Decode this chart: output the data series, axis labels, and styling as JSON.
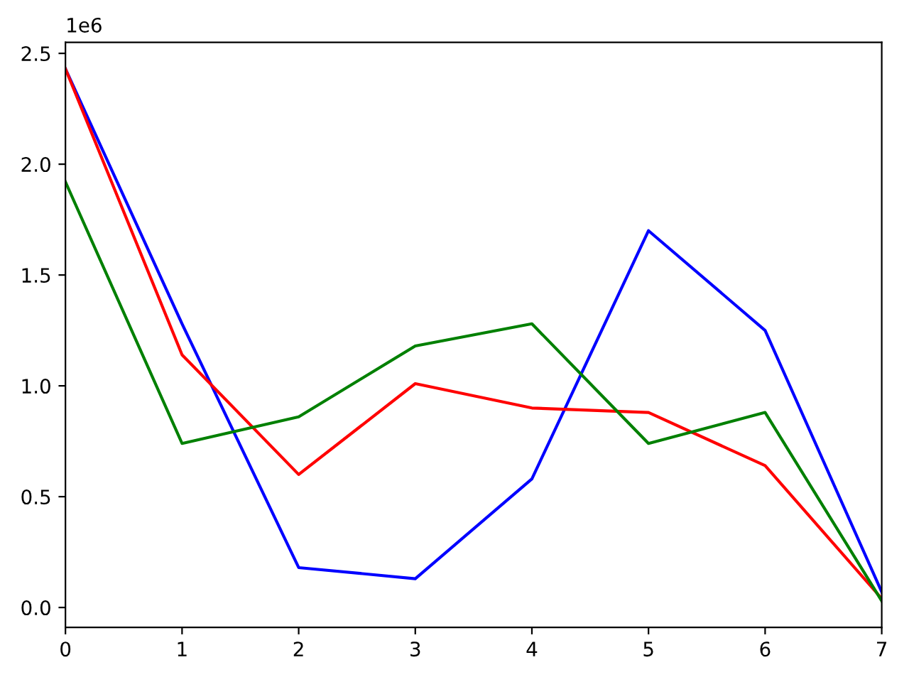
{
  "chart_data": {
    "type": "line",
    "x": [
      0,
      1,
      2,
      3,
      4,
      5,
      6,
      7
    ],
    "series": [
      {
        "color": "#0000ff",
        "values": [
          2.43,
          1.28,
          0.18,
          0.13,
          0.58,
          1.7,
          1.25,
          0.07
        ]
      },
      {
        "color": "#ff0000",
        "values": [
          2.43,
          1.14,
          0.6,
          1.01,
          0.9,
          0.88,
          0.64,
          0.04
        ]
      },
      {
        "color": "#008000",
        "values": [
          1.92,
          0.74,
          0.86,
          1.18,
          1.28,
          0.74,
          0.88,
          0.03
        ]
      }
    ],
    "xlim": [
      0,
      7
    ],
    "xticks": [
      0,
      1,
      2,
      3,
      4,
      5,
      6,
      7
    ],
    "ylim": [
      -0.09,
      2.55
    ],
    "yticks": [
      {
        "value": 0,
        "label": "0.0"
      },
      0.5,
      {
        "value": 1,
        "label": "1.0"
      },
      1.5,
      {
        "value": 2,
        "label": "2.0"
      },
      2.5
    ],
    "annotations": [
      "1e6"
    ]
  }
}
